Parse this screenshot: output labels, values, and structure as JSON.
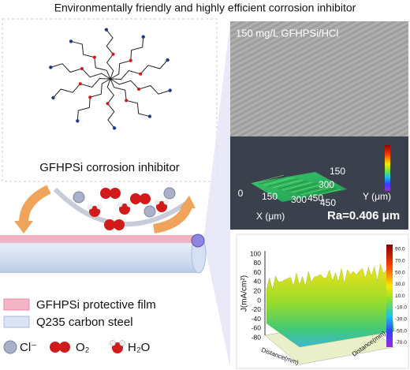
{
  "title": "Environmentally friendly and highly efficient corrosion inhibitor",
  "molecule": {
    "label": "GFHPSi corrosion inhibitor"
  },
  "micrograph": {
    "label": "150 mg/L GFHPSi/HCl",
    "x_axis": {
      "title": "X (μm)",
      "ticks": [
        "0",
        "150",
        "300",
        "450"
      ]
    },
    "y_axis": {
      "title": "Y (μm)",
      "ticks": [
        "150",
        "300",
        "450"
      ]
    },
    "roughness": "Ra=0.406 μm"
  },
  "current_map": {
    "z_title": "J(mA/cm²)",
    "z_ticks": [
      "100",
      "80",
      "60",
      "40",
      "20",
      "0",
      "-20",
      "-40",
      "-60",
      "-80"
    ],
    "colorbar_ticks": [
      "90.0",
      "70.0",
      "50.0",
      "30.0",
      "10.0",
      "-10.0",
      "-30.0",
      "-50.0",
      "-70.0"
    ],
    "x_title": "Distance(mm)",
    "y_title": "Distance(mm)"
  },
  "legend": [
    {
      "label": "GFHPSi protective film"
    },
    {
      "label": "Q235 carbon steel"
    }
  ],
  "species": [
    {
      "label": "Cl⁻"
    },
    {
      "label": "O₂"
    },
    {
      "label": "H₂O"
    }
  ]
}
